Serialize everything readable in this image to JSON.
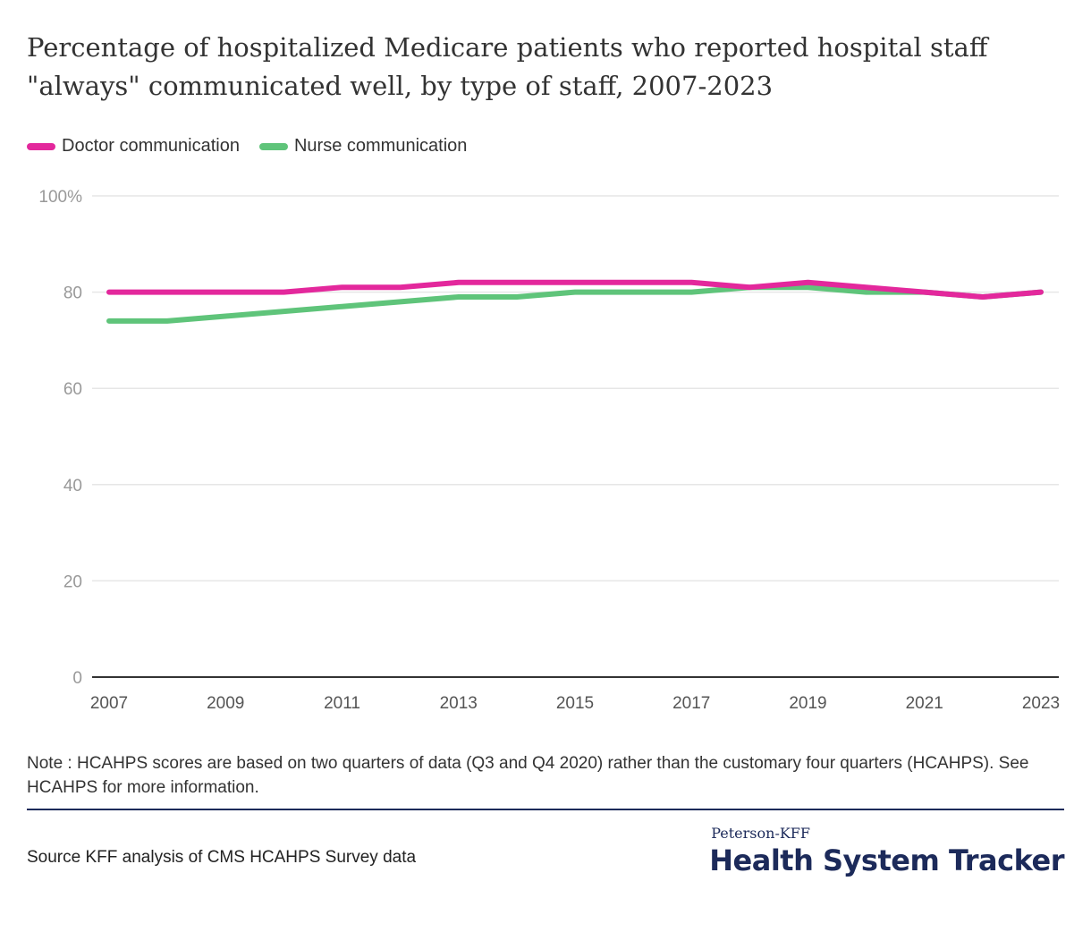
{
  "title": "Percentage of hospitalized Medicare patients who reported hospital staff \"always\" communicated well, by type of staff, 2007-2023",
  "colors": {
    "doctor": "#e3289c",
    "nurse": "#5fc47a",
    "grid": "#e6e6e6",
    "axis": "#333333",
    "tick": "#999999",
    "brand": "#1c2a5a"
  },
  "legend": [
    {
      "label": "Doctor communication",
      "color": "#e3289c"
    },
    {
      "label": "Nurse communication",
      "color": "#5fc47a"
    }
  ],
  "chart_data": {
    "type": "line",
    "x": [
      2007,
      2008,
      2009,
      2010,
      2011,
      2012,
      2013,
      2014,
      2015,
      2016,
      2017,
      2018,
      2019,
      2020,
      2021,
      2022,
      2023
    ],
    "series": [
      {
        "name": "Doctor communication",
        "values": [
          80,
          80,
          80,
          80,
          81,
          81,
          82,
          82,
          82,
          82,
          82,
          81,
          82,
          81,
          80,
          79,
          80
        ]
      },
      {
        "name": "Nurse communication",
        "values": [
          74,
          74,
          75,
          76,
          77,
          78,
          79,
          79,
          80,
          80,
          80,
          81,
          81,
          80,
          80,
          79,
          80
        ]
      }
    ],
    "xticks": [
      "2007",
      "2009",
      "2011",
      "2013",
      "2015",
      "2017",
      "2019",
      "2021",
      "2023"
    ],
    "yticks": [
      "0",
      "20",
      "40",
      "60",
      "80",
      "100%"
    ],
    "ylim": [
      0,
      100
    ],
    "xlim": [
      2007,
      2023
    ],
    "grid": true,
    "legend_position": "top-left"
  },
  "note": "Note : HCAHPS scores are based on two quarters of data (Q3 and Q4 2020) rather than the customary four quarters (HCAHPS). See HCAHPS for more information.",
  "source": "Source KFF analysis of CMS HCAHPS Survey data",
  "brand": {
    "top": "Peterson-KFF",
    "main": "Health System Tracker"
  }
}
